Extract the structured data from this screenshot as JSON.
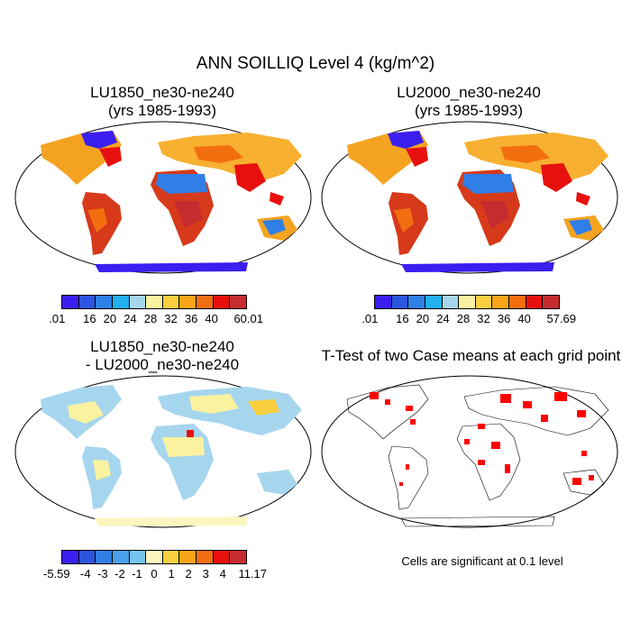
{
  "figure": {
    "title": "ANN SOILLIQ Level 4 (kg/m^2)"
  },
  "panels": [
    {
      "title_line1": "LU1850_ne30-ne240",
      "title_line2": "(yrs 1985-1993)",
      "colorbar": {
        "colors": [
          "#3b1ef0",
          "#2c55e0",
          "#2f7fe6",
          "#22b0ee",
          "#a6d6ee",
          "#fbf2a0",
          "#fbd040",
          "#f8a418",
          "#f26f10",
          "#e8100e",
          "#c52c30"
        ],
        "labels": [
          ".01",
          "16",
          "20",
          "24",
          "28",
          "32",
          "36",
          "40",
          "60.01"
        ]
      }
    },
    {
      "title_line1": "LU2000_ne30-ne240",
      "title_line2": "(yrs 1985-1993)",
      "colorbar": {
        "colors": [
          "#3b1ef0",
          "#2c55e0",
          "#2f7fe6",
          "#22b0ee",
          "#a6d6ee",
          "#fbf2a0",
          "#fbd040",
          "#f8a418",
          "#f26f10",
          "#e8100e",
          "#c52c30"
        ],
        "labels": [
          ".01",
          "16",
          "20",
          "24",
          "28",
          "32",
          "36",
          "40",
          "57.69"
        ]
      }
    },
    {
      "title_line1": "LU1850_ne30-ne240",
      "title_line2": "- LU2000_ne30-ne240",
      "colorbar": {
        "colors": [
          "#3b1ef0",
          "#2c55e0",
          "#2f7fe6",
          "#4aa0ea",
          "#74c4ee",
          "#fbf6c0",
          "#fbd040",
          "#f8a418",
          "#f26f10",
          "#e8100e",
          "#c52c30"
        ],
        "labels": [
          "-5.59",
          "-4",
          "-3",
          "-2",
          "-1",
          "0",
          "1",
          "2",
          "3",
          "4",
          "11.17"
        ]
      }
    },
    {
      "title_line1": "T-Test of two Case means at each grid point",
      "note": "Cells are significant at 0.1 level"
    }
  ]
}
